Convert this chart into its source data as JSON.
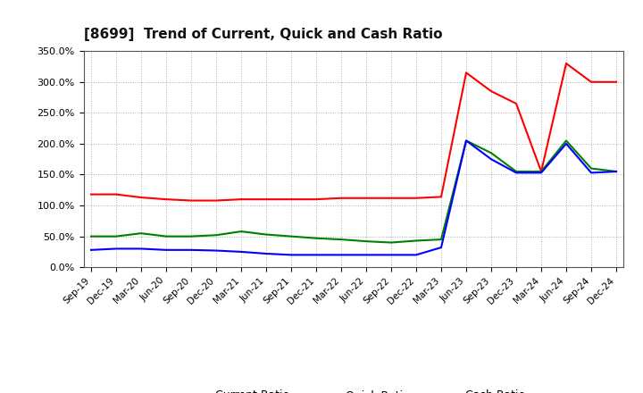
{
  "title": "[8699]  Trend of Current, Quick and Cash Ratio",
  "labels": [
    "Sep-19",
    "Dec-19",
    "Mar-20",
    "Jun-20",
    "Sep-20",
    "Dec-20",
    "Mar-21",
    "Jun-21",
    "Sep-21",
    "Dec-21",
    "Mar-22",
    "Jun-22",
    "Sep-22",
    "Dec-22",
    "Mar-23",
    "Jun-23",
    "Sep-23",
    "Dec-23",
    "Mar-24",
    "Jun-24",
    "Sep-24",
    "Dec-24"
  ],
  "current_ratio": [
    118,
    118,
    113,
    110,
    108,
    108,
    110,
    110,
    110,
    110,
    112,
    112,
    112,
    112,
    114,
    315,
    285,
    265,
    155,
    330,
    300,
    300
  ],
  "quick_ratio": [
    50,
    50,
    55,
    50,
    50,
    52,
    58,
    53,
    50,
    47,
    45,
    42,
    40,
    43,
    45,
    205,
    185,
    155,
    155,
    205,
    160,
    155
  ],
  "cash_ratio": [
    28,
    30,
    30,
    28,
    28,
    27,
    25,
    22,
    20,
    20,
    20,
    20,
    20,
    20,
    32,
    205,
    175,
    153,
    153,
    200,
    153,
    155
  ],
  "current_color": "#ff0000",
  "quick_color": "#008000",
  "cash_color": "#0000ff",
  "background_color": "#ffffff",
  "grid_color": "#999999",
  "ylim": [
    0,
    350
  ],
  "yticks": [
    0,
    50,
    100,
    150,
    200,
    250,
    300,
    350
  ],
  "ytick_labels": [
    "0.0%",
    "50.0%",
    "100.0%",
    "150.0%",
    "200.0%",
    "250.0%",
    "300.0%",
    "350.0%"
  ],
  "title_fontsize": 11,
  "line_width": 1.5,
  "legend_fontsize": 9
}
